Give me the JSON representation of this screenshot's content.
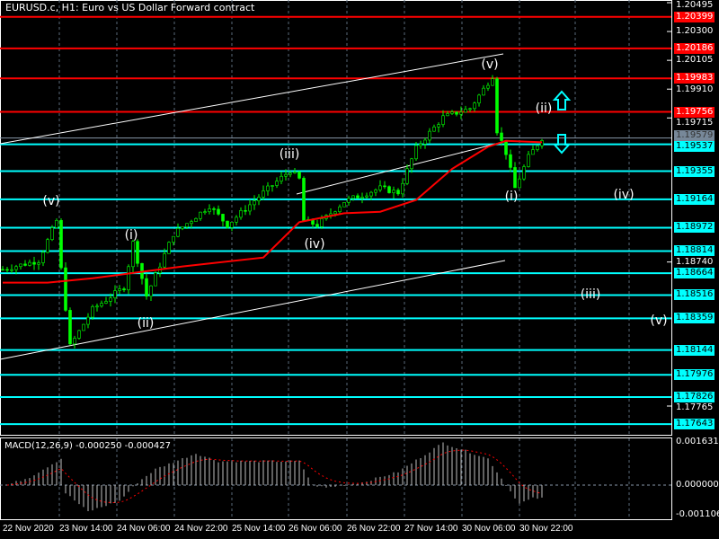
{
  "header": {
    "title": "EURUSD.c, H1:  Euro vs US Dollar Forward contract"
  },
  "colors": {
    "background": "#000000",
    "support": "#00FFFF",
    "resistance": "#FF0000",
    "ma": "#FF0000",
    "candle": "#00FF00",
    "channel": "#FFFFFF"
  },
  "chart_data": [
    {
      "type": "candlestick",
      "symbol": "EURUSD.c",
      "timeframe": "H1",
      "ylim": [
        1.176,
        1.2052
      ],
      "price_axis_ticks": [
        "1.20495",
        "1.20300",
        "1.20105",
        "1.19910",
        "1.19715",
        "1.18740",
        "1.17765"
      ],
      "current_price": "1.19579",
      "resistance_levels": [
        "1.20399",
        "1.20186",
        "1.19983",
        "1.19756"
      ],
      "support_levels": [
        "1.19537",
        "1.19355",
        "1.19164",
        "1.18972",
        "1.18814",
        "1.18664",
        "1.18516",
        "1.18359",
        "1.18144",
        "1.17976",
        "1.17826",
        "1.17643"
      ],
      "x_labels": [
        "22 Nov 2020",
        "23 Nov 14:00",
        "24 Nov 06:00",
        "24 Nov 22:00",
        "25 Nov 14:00",
        "26 Nov 06:00",
        "26 Nov 22:00",
        "27 Nov 14:00",
        "30 Nov 06:00",
        "30 Nov 22:00"
      ],
      "close_path": [
        [
          0,
          1.1869
        ],
        [
          8,
          1.1875
        ],
        [
          12,
          1.1902
        ],
        [
          13,
          1.1869
        ],
        [
          15,
          1.1817
        ],
        [
          20,
          1.1842
        ],
        [
          27,
          1.1857
        ],
        [
          29,
          1.1887
        ],
        [
          32,
          1.1851
        ],
        [
          38,
          1.1893
        ],
        [
          46,
          1.1912
        ],
        [
          50,
          1.1899
        ],
        [
          58,
          1.1921
        ],
        [
          64,
          1.1936
        ],
        [
          66,
          1.193
        ],
        [
          67,
          1.1902
        ],
        [
          70,
          1.1899
        ],
        [
          76,
          1.1915
        ],
        [
          84,
          1.1924
        ],
        [
          88,
          1.1921
        ],
        [
          92,
          1.1951
        ],
        [
          98,
          1.1972
        ],
        [
          104,
          1.1978
        ],
        [
          107,
          1.1991
        ],
        [
          109,
          1.2
        ],
        [
          110,
          1.1963
        ],
        [
          112,
          1.1948
        ],
        [
          114,
          1.1924
        ],
        [
          117,
          1.1945
        ],
        [
          120,
          1.1958
        ]
      ],
      "moving_average": [
        [
          0,
          1.186
        ],
        [
          10,
          1.186
        ],
        [
          20,
          1.1863
        ],
        [
          40,
          1.1871
        ],
        [
          58,
          1.1877
        ],
        [
          66,
          1.1901
        ],
        [
          76,
          1.1907
        ],
        [
          84,
          1.1908
        ],
        [
          92,
          1.1916
        ],
        [
          100,
          1.1937
        ],
        [
          108,
          1.1952
        ],
        [
          112,
          1.1956
        ],
        [
          120,
          1.1955
        ]
      ],
      "wave_labels": [
        "(v)",
        "(i)",
        "(ii)",
        "(iii)",
        "(iv)",
        "(v)",
        "(ii)",
        "(i)",
        "(iv)",
        "(iii)",
        "(v)"
      ]
    },
    {
      "type": "bar",
      "title": "MACD(12,26,9) -0.000250 -0.000427",
      "ylim": [
        -0.001106,
        0.001631
      ],
      "axis_ticks": [
        "0.001631",
        "0.000000",
        "-0.001106"
      ],
      "histogram_path": [
        [
          1,
          0.0
        ],
        [
          6,
          0.0003
        ],
        [
          12,
          0.0009
        ],
        [
          13,
          0.001
        ],
        [
          14,
          -0.0003
        ],
        [
          19,
          -0.001
        ],
        [
          26,
          -0.0006
        ],
        [
          30,
          0.0001
        ],
        [
          34,
          0.0006
        ],
        [
          43,
          0.0012
        ],
        [
          48,
          0.0009
        ],
        [
          56,
          0.0009
        ],
        [
          66,
          0.0009
        ],
        [
          69,
          0.0
        ],
        [
          72,
          -0.0001
        ],
        [
          80,
          0.0001
        ],
        [
          88,
          0.0005
        ],
        [
          98,
          0.0016
        ],
        [
          108,
          0.001
        ],
        [
          112,
          0.0
        ],
        [
          115,
          -0.0007
        ],
        [
          118,
          -0.0005
        ]
      ]
    }
  ]
}
